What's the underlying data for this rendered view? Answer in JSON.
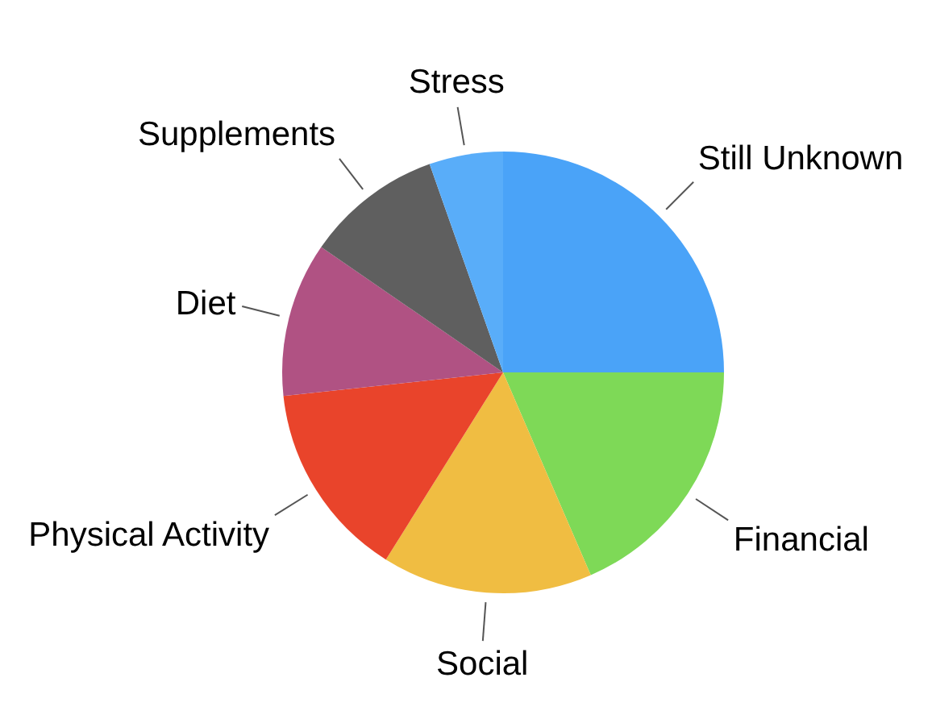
{
  "chart_data": {
    "type": "pie",
    "categories": [
      "Still Unknown",
      "Financial",
      "Social",
      "Physical Activity",
      "Diet",
      "Supplements",
      "Stress"
    ],
    "values": [
      25,
      18.5,
      15.4,
      14.4,
      11.3,
      10,
      5.4
    ],
    "colors": [
      "#4aa3f8",
      "#7ed957",
      "#f0bd42",
      "#e9442b",
      "#b05283",
      "#5f5f5f",
      "#59adf9"
    ],
    "legend": false
  }
}
